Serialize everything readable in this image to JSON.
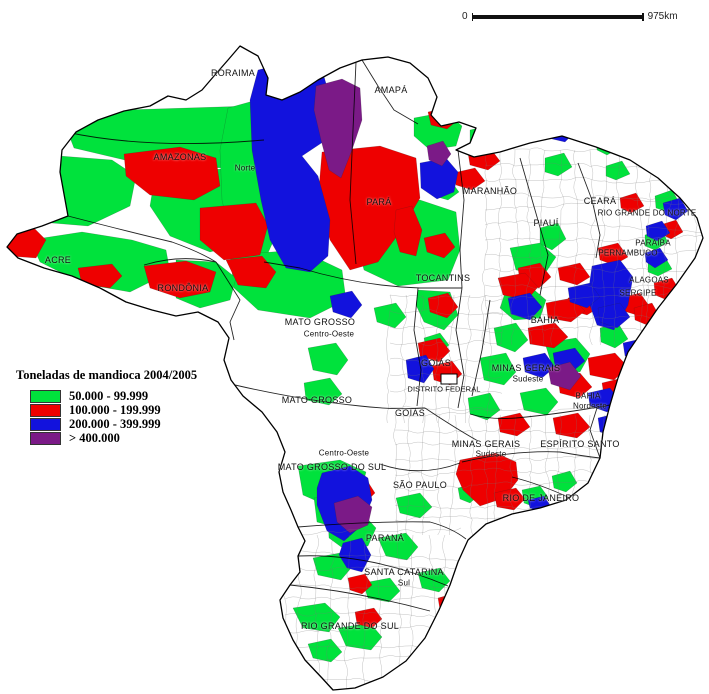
{
  "legend": {
    "title": "Toneladas de mandioca 2004/2005",
    "classes": [
      {
        "name": "class-1",
        "color": "#00e23c",
        "label": "50.000 - 99.999"
      },
      {
        "name": "class-2",
        "color": "#ee0000",
        "label": "100.000 - 199.999"
      },
      {
        "name": "class-3",
        "color": "#1212dd",
        "label": "200.000 - 399.999"
      },
      {
        "name": "class-4",
        "color": "#7b1a87",
        "label": "> 400.000"
      }
    ]
  },
  "scale_bar": {
    "start": "0",
    "end": "975km"
  },
  "map_labels": {
    "roraima": "RORAIMA",
    "amapa": "AMAPÁ",
    "amazonas": "AMAZONAS",
    "para": "PARÁ",
    "maranhao": "MARANHÃO",
    "ceara": "CEARÁ",
    "rio_grande_do_norte": "RIO GRANDE DO NORTE",
    "piaui": "PIAUÍ",
    "paraiba": "PARAÍBA",
    "pernambuco": "PERNAMBUCO",
    "acre": "ACRE",
    "alagoas": "ALAGOAS",
    "sergipe": "SERGIPE",
    "rondonia": "RONDÔNIA",
    "tocantins": "TOCANTINS",
    "mato_grosso": "MATO GROSSO",
    "goias": "GOIÁS",
    "distrito_federal": "DISTRITO FEDERAL",
    "bahia": "BAHIA",
    "minas_gerais": "MINAS GERAIS",
    "espirito_santo": "ESPÍRITO SANTO",
    "mato_grosso_do_sul": "MATO GROSSO DO SUL",
    "sao_paulo": "SÃO PAULO",
    "rio_de_janeiro": "RIO DE JANEIRO",
    "parana": "PARANÁ",
    "santa_catarina": "SANTA CATARINA",
    "rio_grande_do_sul": "RIO GRANDE DO SUL"
  },
  "region_labels": {
    "norte": "Norte",
    "centro_oeste": "Centro-Oeste",
    "nordeste": "Nordeste",
    "sudeste": "Sudeste",
    "sul": "Sul"
  }
}
